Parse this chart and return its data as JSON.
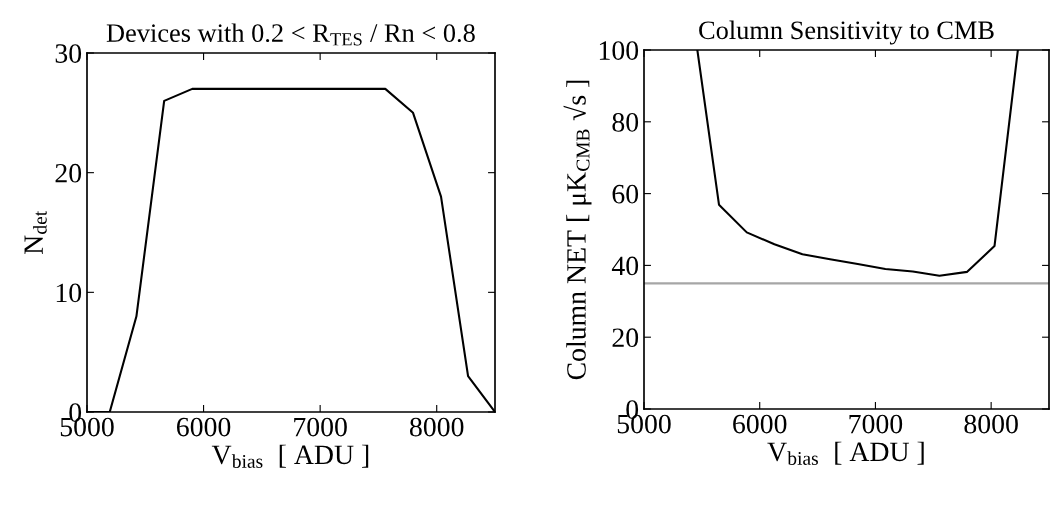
{
  "chart_data": [
    {
      "type": "line",
      "title": "Devices with 0.2 < R$_{TES}$ / Rn < 0.8",
      "xlabel": "V$_{bias}$  [ ADU ]",
      "ylabel": "N$_{det}$",
      "x": [
        5000,
        5195,
        5424,
        5662,
        5903,
        7559,
        7797,
        8037,
        8269,
        8500
      ],
      "series": [
        {
          "color": "#000000",
          "values": [
            0,
            0,
            8,
            26,
            27,
            27,
            25,
            18,
            3,
            0
          ]
        }
      ],
      "xlim": [
        5000,
        8500
      ],
      "xticks": [
        5000,
        6000,
        7000,
        8000
      ],
      "ylim": [
        0,
        30
      ],
      "yticks": [
        0,
        10,
        20,
        30
      ],
      "grid": false
    },
    {
      "type": "line",
      "title": "Column Sensitivity to CMB",
      "xlabel": "V$_{bias}$  [ ADU ]",
      "ylabel": "Column NET [ μK$_{CMB}$ √s ]",
      "x": [
        5461,
        5648,
        5888,
        6127,
        6369,
        6608,
        6847,
        7086,
        7323,
        7553,
        7793,
        8029,
        8231
      ],
      "series": [
        {
          "color": "#000000",
          "values": [
            100,
            56.9,
            49.2,
            45.9,
            43.1,
            41.7,
            40.4,
            39.0,
            38.3,
            37.1,
            38.2,
            45.4,
            100
          ]
        }
      ],
      "ref_lines": [
        {
          "axis": "y",
          "value": 35,
          "color": "#a6a6a6"
        }
      ],
      "xlim": [
        5000,
        8500
      ],
      "xticks": [
        5000,
        6000,
        7000,
        8000
      ],
      "ylim": [
        0,
        100
      ],
      "yticks": [
        0,
        20,
        40,
        60,
        80,
        100
      ],
      "grid": false
    }
  ]
}
